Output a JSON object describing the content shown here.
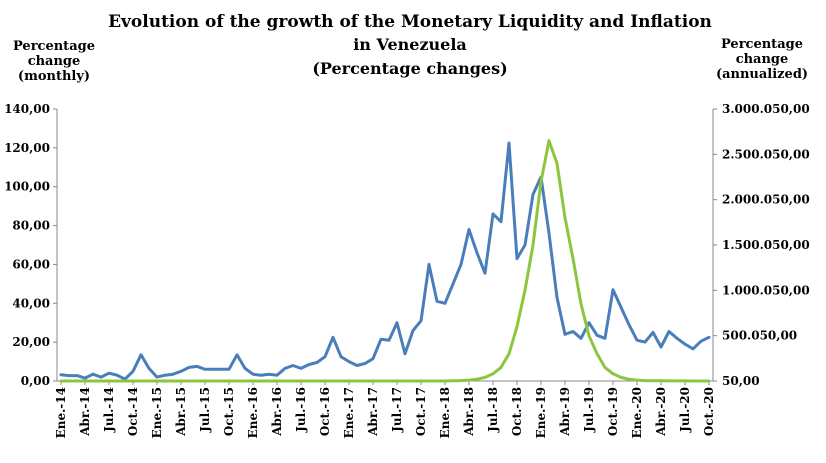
{
  "chart_data": {
    "type": "line",
    "title": "Evolution of the growth of the Monetary Liquidity  and Inflation",
    "subtitle_line1": "in Venezuela",
    "subtitle_line2": "(Percentage changes)",
    "ylabel_left": [
      "Percentage",
      "change",
      "(monthly)"
    ],
    "ylabel_right": [
      "Percentage",
      "change",
      "(annualized)"
    ],
    "ylim_left": [
      0,
      140
    ],
    "ylim_right": [
      50,
      3000050
    ],
    "yticks_left": [
      "0,00",
      "20,00",
      "40,00",
      "60,00",
      "80,00",
      "100,00",
      "120,00",
      "140,00"
    ],
    "yticks_right": [
      "50,00",
      "500.050,00",
      "1.000.050,00",
      "1.500.050,00",
      "2.000.050,00",
      "2.500.050,00",
      "3.000.050,00"
    ],
    "x_tick_labels": [
      "Ene.-14",
      "Abr.-14",
      "Jul.-14",
      "Oct.-14",
      "Ene.-15",
      "Abr.-15",
      "Jul.-15",
      "Oct.-15",
      "Ene.-16",
      "Abr.-16",
      "Jul.-16",
      "Oct.-16",
      "Ene.-17",
      "Abr.-17",
      "Jul.-17",
      "Oct.-17",
      "Ene.-18",
      "Abr.-18",
      "Jul.-18",
      "Oct.-18",
      "Ene.-19",
      "Abr.-19",
      "Jul.-19",
      "Oct.-19",
      "Ene.-20",
      "Abr.-20",
      "Jul.-20",
      "Oct.-20"
    ],
    "grid": false,
    "legend": "none",
    "series": [
      {
        "axis": "left",
        "color": "#4a7ebb",
        "values": [
          3.2,
          2.8,
          2.8,
          1.5,
          3.5,
          2,
          4,
          3,
          1,
          5,
          13.5,
          6.5,
          2,
          3,
          3.5,
          5,
          7,
          7.5,
          6,
          6,
          6,
          6,
          13.5,
          6.5,
          3.5,
          3,
          3.5,
          3,
          6.5,
          8,
          6.5,
          8.5,
          9.5,
          12.5,
          22.5,
          12.5,
          10,
          8,
          9,
          11.5,
          21.5,
          21,
          30,
          14,
          26,
          31,
          60,
          41,
          40,
          50,
          60,
          78,
          66,
          55.5,
          86,
          82,
          122.5,
          63,
          70,
          96,
          105,
          76,
          43,
          24,
          25.5,
          22,
          30,
          23.5,
          22,
          47,
          38,
          29,
          21,
          20,
          25,
          17.5,
          25.5,
          22,
          19,
          16.5,
          20.5,
          22.5
        ]
      },
      {
        "axis": "right",
        "color": "#8cc63f",
        "values": [
          50,
          50,
          50,
          50,
          50,
          50,
          50,
          50,
          50,
          50,
          50,
          50,
          50,
          50,
          50,
          50,
          50,
          50,
          50,
          50,
          50,
          50,
          50,
          50,
          50,
          50,
          50,
          50,
          50,
          50,
          50,
          50,
          50,
          50,
          50,
          50,
          50,
          50,
          50,
          50,
          50,
          50,
          50,
          50,
          50,
          50,
          50,
          50,
          500,
          2000,
          5000,
          10000,
          20000,
          40000,
          80000,
          150000,
          300000,
          600000,
          1000000,
          1500000,
          2200000,
          2650000,
          2400000,
          1800000,
          1350000,
          850000,
          500000,
          300000,
          150000,
          80000,
          40000,
          20000,
          10000,
          5000,
          3000,
          2000,
          1500,
          1000,
          800,
          600,
          400,
          300
        ]
      }
    ]
  }
}
